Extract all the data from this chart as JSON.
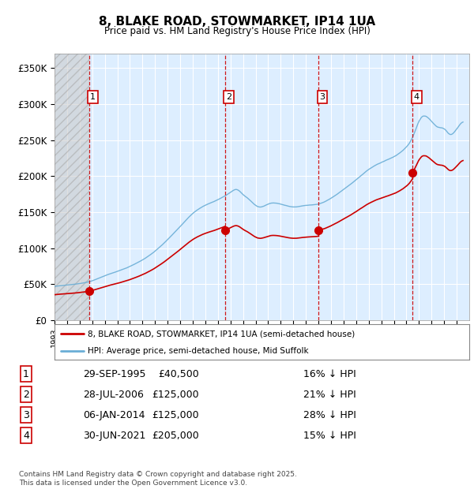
{
  "title": "8, BLAKE ROAD, STOWMARKET, IP14 1UA",
  "subtitle": "Price paid vs. HM Land Registry's House Price Index (HPI)",
  "yticks": [
    0,
    50000,
    100000,
    150000,
    200000,
    250000,
    300000,
    350000
  ],
  "ytick_labels": [
    "£0",
    "£50K",
    "£100K",
    "£150K",
    "£200K",
    "£250K",
    "£300K",
    "£350K"
  ],
  "ylim": [
    0,
    370000
  ],
  "xlim_start": 1993.0,
  "xlim_end": 2026.0,
  "hpi_color": "#6aaed6",
  "price_color": "#cc0000",
  "chart_bg": "#ddeeff",
  "transactions": [
    {
      "num": 1,
      "year": 1995.75,
      "price": 40500,
      "date": "29-SEP-1995",
      "pct": "16%",
      "dir": "↓"
    },
    {
      "num": 2,
      "year": 2006.57,
      "price": 125000,
      "date": "28-JUL-2006",
      "pct": "21%",
      "dir": "↓"
    },
    {
      "num": 3,
      "year": 2014.02,
      "price": 125000,
      "date": "06-JAN-2014",
      "pct": "28%",
      "dir": "↓"
    },
    {
      "num": 4,
      "year": 2021.5,
      "price": 205000,
      "date": "30-JUN-2021",
      "pct": "15%",
      "dir": "↓"
    }
  ],
  "legend_line1": "8, BLAKE ROAD, STOWMARKET, IP14 1UA (semi-detached house)",
  "legend_line2": "HPI: Average price, semi-detached house, Mid Suffolk",
  "footer": "Contains HM Land Registry data © Crown copyright and database right 2025.\nThis data is licensed under the Open Government Licence v3.0.",
  "background_color": "#ffffff",
  "grid_color": "#ffffff",
  "table_rows": [
    [
      "1",
      "29-SEP-1995",
      "£40,500",
      "16% ↓ HPI"
    ],
    [
      "2",
      "28-JUL-2006",
      "£125,000",
      "21% ↓ HPI"
    ],
    [
      "3",
      "06-JAN-2014",
      "£125,000",
      "28% ↓ HPI"
    ],
    [
      "4",
      "30-JUN-2021",
      "£205,000",
      "15% ↓ HPI"
    ]
  ],
  "hpi_anchors_x": [
    1993.0,
    1994.0,
    1995.0,
    1996.0,
    1997.0,
    1998.0,
    1999.0,
    2000.0,
    2001.0,
    2002.0,
    2003.0,
    2004.0,
    2005.0,
    2006.0,
    2007.0,
    2007.5,
    2008.0,
    2008.5,
    2009.0,
    2009.5,
    2010.0,
    2011.0,
    2012.0,
    2013.0,
    2014.0,
    2015.0,
    2016.0,
    2017.0,
    2018.0,
    2019.0,
    2020.0,
    2021.0,
    2021.5,
    2022.0,
    2022.5,
    2023.0,
    2023.5,
    2024.0,
    2024.5,
    2025.0,
    2025.5
  ],
  "hpi_anchors_y": [
    47000,
    49000,
    51000,
    55000,
    62000,
    68000,
    75000,
    84000,
    96000,
    112000,
    130000,
    148000,
    160000,
    168000,
    178000,
    182000,
    175000,
    168000,
    160000,
    158000,
    162000,
    162000,
    158000,
    160000,
    162000,
    170000,
    182000,
    196000,
    210000,
    220000,
    228000,
    242000,
    256000,
    278000,
    285000,
    278000,
    270000,
    268000,
    260000,
    268000,
    278000
  ]
}
